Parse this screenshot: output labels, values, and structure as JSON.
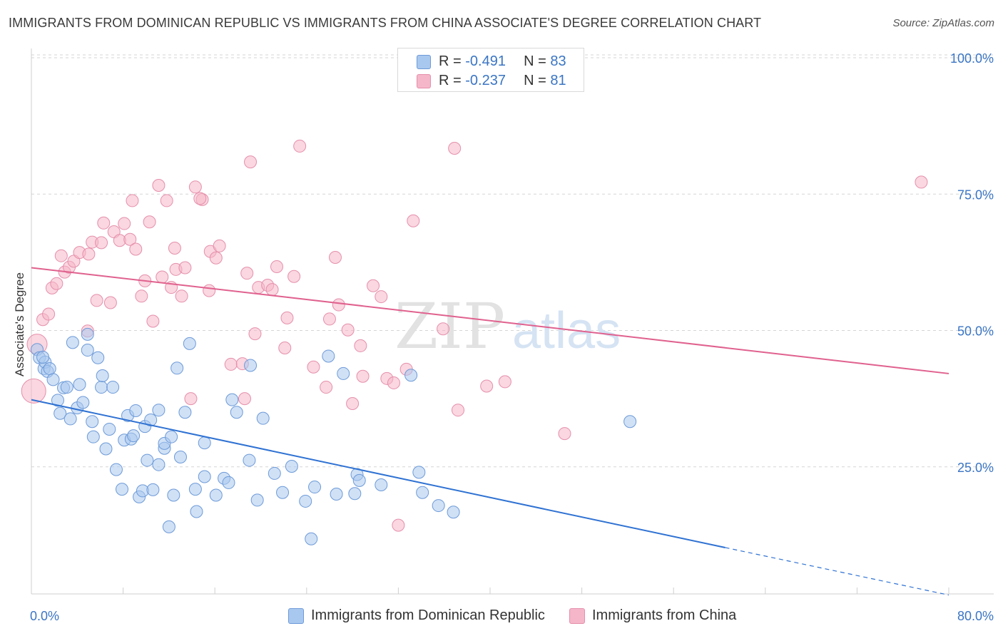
{
  "title": "IMMIGRANTS FROM DOMINICAN REPUBLIC VS IMMIGRANTS FROM CHINA ASSOCIATE'S DEGREE CORRELATION CHART",
  "source": "Source: ZipAtlas.com",
  "watermark": {
    "zip": "ZIP",
    "atlas": "atlas"
  },
  "legend_top": {
    "series1": {
      "r_label": "R = ",
      "r_value": "-0.491",
      "n_label": "N = ",
      "n_value": "83"
    },
    "series2": {
      "r_label": "R = ",
      "r_value": "-0.237",
      "n_label": "N = ",
      "n_value": "81"
    }
  },
  "bottom_legend": {
    "series1": "Immigrants from Dominican Republic",
    "series2": "Immigrants from China"
  },
  "colors": {
    "blue_fill": "#a9c8ef",
    "blue_stroke": "#6d9ad8",
    "blue_line": "#2f72d3",
    "pink_fill": "#f5b6c9",
    "pink_stroke": "#e58fab",
    "pink_line": "#e0618e",
    "tick_text": "#3a75c4",
    "grid": "#d5d5d5"
  },
  "chart_data": {
    "type": "scatter",
    "title": "IMMIGRANTS FROM DOMINICAN REPUBLIC VS IMMIGRANTS FROM CHINA ASSOCIATE'S DEGREE CORRELATION CHART",
    "xlabel": "",
    "ylabel": "Associate's Degree",
    "xlim": [
      0,
      80
    ],
    "ylim": [
      0,
      105
    ],
    "x_ticks": [
      "0.0%",
      "80.0%"
    ],
    "y_ticks": [
      {
        "value": 25,
        "label": "25.0%"
      },
      {
        "value": 50,
        "label": "50.0%"
      },
      {
        "value": 75,
        "label": "75.0%"
      },
      {
        "value": 100,
        "label": "100.0%"
      }
    ],
    "grid": "horizontal dashed",
    "series": [
      {
        "name": "Immigrants from Dominican Republic",
        "color": "blue",
        "trend": {
          "x0": 0,
          "y0": 37.3,
          "x1": 60.5,
          "y1": 10.2,
          "dashed_to_x": 80,
          "dashed_to_y": 1.5
        },
        "points": [
          [
            0.5,
            46.5
          ],
          [
            0.7,
            45
          ],
          [
            1.1,
            43
          ],
          [
            1.2,
            44.2
          ],
          [
            1.4,
            42.5
          ],
          [
            1.6,
            43
          ],
          [
            1.9,
            41
          ],
          [
            2.3,
            37.2
          ],
          [
            2.5,
            34.8
          ],
          [
            2.8,
            39.5
          ],
          [
            3.1,
            39.6
          ],
          [
            3.4,
            33.8
          ],
          [
            3.6,
            47.8
          ],
          [
            4.0,
            35.8
          ],
          [
            4.2,
            40.1
          ],
          [
            4.5,
            36.8
          ],
          [
            4.9,
            49.3
          ],
          [
            4.9,
            46.4
          ],
          [
            5.3,
            33.3
          ],
          [
            5.4,
            30.5
          ],
          [
            5.8,
            45
          ],
          [
            6.1,
            39.6
          ],
          [
            6.2,
            41.7
          ],
          [
            6.5,
            28.3
          ],
          [
            6.8,
            31.9
          ],
          [
            7.1,
            39.6
          ],
          [
            7.4,
            24.5
          ],
          [
            7.9,
            20.9
          ],
          [
            8.1,
            29.9
          ],
          [
            8.4,
            34.4
          ],
          [
            8.7,
            30.1
          ],
          [
            8.9,
            30.7
          ],
          [
            9.1,
            35.3
          ],
          [
            9.4,
            19.5
          ],
          [
            9.7,
            20.6
          ],
          [
            9.9,
            32.4
          ],
          [
            10.1,
            26.2
          ],
          [
            10.4,
            33.6
          ],
          [
            10.6,
            20.8
          ],
          [
            11.1,
            25.4
          ],
          [
            11.1,
            35.4
          ],
          [
            11.6,
            28.4
          ],
          [
            11.6,
            29.3
          ],
          [
            12.0,
            14
          ],
          [
            12.2,
            30.5
          ],
          [
            12.4,
            19.8
          ],
          [
            12.7,
            43.1
          ],
          [
            13.0,
            26.8
          ],
          [
            13.4,
            35
          ],
          [
            13.8,
            47.6
          ],
          [
            14.3,
            20.9
          ],
          [
            14.4,
            16.8
          ],
          [
            15.1,
            29.4
          ],
          [
            15.1,
            23.2
          ],
          [
            16.1,
            19.8
          ],
          [
            16.8,
            22.9
          ],
          [
            17.2,
            22.1
          ],
          [
            17.5,
            37.3
          ],
          [
            17.9,
            35
          ],
          [
            19.0,
            26.2
          ],
          [
            19.1,
            43.6
          ],
          [
            19.7,
            18.9
          ],
          [
            20.2,
            33.9
          ],
          [
            21.2,
            23.8
          ],
          [
            21.9,
            20.3
          ],
          [
            22.7,
            25.1
          ],
          [
            23.9,
            18.7
          ],
          [
            24.4,
            11.8
          ],
          [
            24.7,
            21.3
          ],
          [
            25.9,
            45.3
          ],
          [
            26.6,
            20
          ],
          [
            27.2,
            42.1
          ],
          [
            28.2,
            20.1
          ],
          [
            28.4,
            23.6
          ],
          [
            28.6,
            22.5
          ],
          [
            30.5,
            21.7
          ],
          [
            33.1,
            41.8
          ],
          [
            33.8,
            24
          ],
          [
            34.1,
            20.3
          ],
          [
            35.5,
            17.9
          ],
          [
            36.8,
            16.7
          ],
          [
            52.2,
            33.3
          ],
          [
            1.0,
            45.1
          ]
        ]
      },
      {
        "name": "Immigrants from China",
        "color": "pink",
        "trend": {
          "x0": 0,
          "y0": 61.5,
          "x1": 80,
          "y1": 42.1
        },
        "points": [
          [
            0.2,
            38.9
          ],
          [
            0.5,
            47.5
          ],
          [
            1.0,
            52
          ],
          [
            1.5,
            53
          ],
          [
            1.8,
            57.8
          ],
          [
            2.2,
            58.6
          ],
          [
            2.6,
            63.7
          ],
          [
            2.9,
            60.7
          ],
          [
            3.3,
            61.6
          ],
          [
            3.7,
            62.7
          ],
          [
            4.2,
            64.3
          ],
          [
            4.9,
            49.9
          ],
          [
            5.0,
            64
          ],
          [
            5.3,
            66.2
          ],
          [
            5.7,
            55.5
          ],
          [
            6.1,
            66.1
          ],
          [
            6.3,
            69.7
          ],
          [
            6.9,
            55.1
          ],
          [
            7.2,
            68.1
          ],
          [
            7.7,
            66.5
          ],
          [
            8.1,
            69.6
          ],
          [
            8.6,
            66.7
          ],
          [
            8.8,
            73.8
          ],
          [
            9.1,
            64.9
          ],
          [
            9.6,
            56.3
          ],
          [
            9.9,
            59.1
          ],
          [
            10.3,
            69.9
          ],
          [
            10.6,
            51.7
          ],
          [
            11.1,
            76.6
          ],
          [
            11.4,
            59.8
          ],
          [
            11.8,
            73.8
          ],
          [
            12.5,
            65.1
          ],
          [
            12.6,
            61.2
          ],
          [
            13.1,
            56.3
          ],
          [
            13.4,
            61.5
          ],
          [
            13.9,
            37.5
          ],
          [
            14.3,
            76.3
          ],
          [
            14.9,
            74
          ],
          [
            14.7,
            74.2
          ],
          [
            15.5,
            57.3
          ],
          [
            15.6,
            64.5
          ],
          [
            16.1,
            63.3
          ],
          [
            16.4,
            65.5
          ],
          [
            17.4,
            43.8
          ],
          [
            18.4,
            43.9
          ],
          [
            18.6,
            37.5
          ],
          [
            18.8,
            60.5
          ],
          [
            19.1,
            80.9
          ],
          [
            19.5,
            49.4
          ],
          [
            19.8,
            57.9
          ],
          [
            20.6,
            58.3
          ],
          [
            21.0,
            57.5
          ],
          [
            21.4,
            61.7
          ],
          [
            22.1,
            46.8
          ],
          [
            22.3,
            52.3
          ],
          [
            22.9,
            59.9
          ],
          [
            23.4,
            83.8
          ],
          [
            24.6,
            43.3
          ],
          [
            25.7,
            39.6
          ],
          [
            26.0,
            52.1
          ],
          [
            26.5,
            63.4
          ],
          [
            26.8,
            54.7
          ],
          [
            27.6,
            50.1
          ],
          [
            28.0,
            36.6
          ],
          [
            28.7,
            47.2
          ],
          [
            28.9,
            41.6
          ],
          [
            29.8,
            58.2
          ],
          [
            30.5,
            56.2
          ],
          [
            31.0,
            41.2
          ],
          [
            31.6,
            40.4
          ],
          [
            32.0,
            14.3
          ],
          [
            32.7,
            42.9
          ],
          [
            33.3,
            70.1
          ],
          [
            35.9,
            50.3
          ],
          [
            36.9,
            83.4
          ],
          [
            37.2,
            35.4
          ],
          [
            39.7,
            39.8
          ],
          [
            41.3,
            40.6
          ],
          [
            46.5,
            31.1
          ],
          [
            77.6,
            77.2
          ],
          [
            12.2,
            57.9
          ]
        ]
      }
    ]
  }
}
